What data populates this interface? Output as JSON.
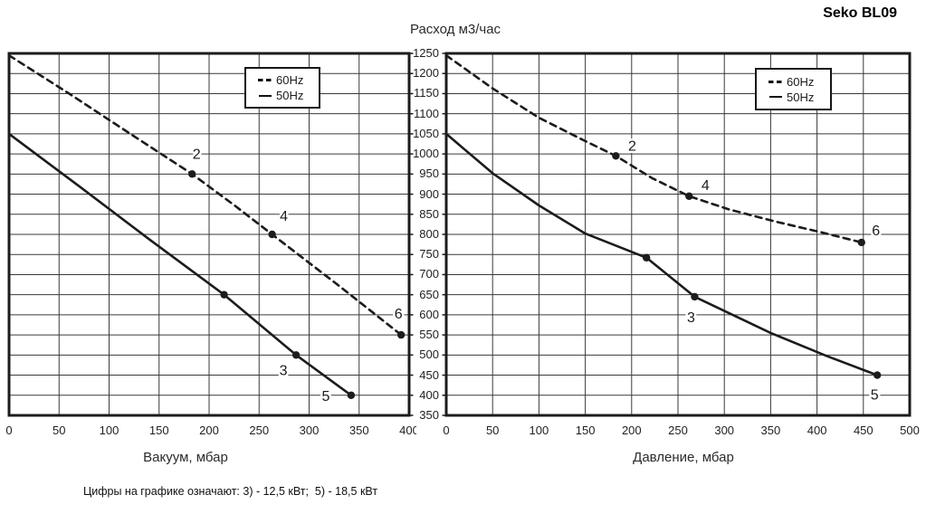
{
  "title": "Seko BL09",
  "flow_axis_title": "Расход м3/час",
  "footnote": "Цифры на графике означают: 3) - 12,5 кВт;  5) - 18,5 кВт",
  "legend": {
    "dashed_label": "60Hz",
    "solid_label": "50Hz"
  },
  "colors": {
    "line": "#1c1c1c",
    "grid": "#3a3a3a",
    "text": "#1f1f1f",
    "background": "#ffffff"
  },
  "y_axis": {
    "title": "Расход м3/час",
    "min": 350,
    "max": 1250,
    "step": 50
  },
  "chart_data": [
    {
      "type": "line",
      "title": "",
      "xlabel": "Вакуум, мбар",
      "ylabel": "Расход м3/час",
      "xlim": [
        0,
        400
      ],
      "ylim": [
        350,
        1250
      ],
      "x_ticks": [
        0,
        50,
        100,
        150,
        200,
        250,
        300,
        350,
        400
      ],
      "grid": true,
      "legend_position": "top-right-inside",
      "series": [
        {
          "name": "60Hz",
          "style": "dashed",
          "points": [
            [
              0,
              1245
            ],
            [
              60,
              1150
            ],
            [
              120,
              1052
            ],
            [
              183,
              950
            ],
            [
              225,
              873
            ],
            [
              263,
              800
            ],
            [
              330,
              672
            ],
            [
              392,
              550
            ]
          ],
          "markers": [
            {
              "x": 183,
              "y": 950,
              "label": "2",
              "dx": 5,
              "dy": -17
            },
            {
              "x": 263,
              "y": 800,
              "label": "4",
              "dx": 13,
              "dy": -15
            },
            {
              "x": 392,
              "y": 550,
              "label": "6",
              "dx": -3,
              "dy": -18
            }
          ]
        },
        {
          "name": "50Hz",
          "style": "solid",
          "points": [
            [
              0,
              1050
            ],
            [
              70,
              920
            ],
            [
              140,
              788
            ],
            [
              215,
              650
            ],
            [
              287,
              500
            ],
            [
              342,
              400
            ]
          ],
          "markers": [
            {
              "x": 215,
              "y": 650,
              "label": ""
            },
            {
              "x": 287,
              "y": 500,
              "label": "3",
              "dx": -14,
              "dy": 22
            },
            {
              "x": 342,
              "y": 400,
              "label": "5",
              "dx": -28,
              "dy": 6
            }
          ]
        }
      ]
    },
    {
      "type": "line",
      "title": "",
      "xlabel": "Давление, мбар",
      "ylabel": "Расход м3/час",
      "xlim": [
        0,
        500
      ],
      "ylim": [
        350,
        1250
      ],
      "x_ticks": [
        0,
        50,
        100,
        150,
        200,
        250,
        300,
        350,
        400,
        450,
        500
      ],
      "grid": true,
      "legend_position": "top-right-inside",
      "series": [
        {
          "name": "60Hz",
          "style": "dashed",
          "points": [
            [
              0,
              1245
            ],
            [
              50,
              1163
            ],
            [
              100,
              1090
            ],
            [
              150,
              1032
            ],
            [
              183,
              995
            ],
            [
              222,
              940
            ],
            [
              262,
              895
            ],
            [
              305,
              862
            ],
            [
              355,
              832
            ],
            [
              405,
              805
            ],
            [
              448,
              780
            ]
          ],
          "markers": [
            {
              "x": 183,
              "y": 995,
              "label": "2",
              "dx": 18,
              "dy": -6
            },
            {
              "x": 262,
              "y": 895,
              "label": "4",
              "dx": 18,
              "dy": -7
            },
            {
              "x": 448,
              "y": 780,
              "label": "6",
              "dx": 16,
              "dy": -8
            }
          ]
        },
        {
          "name": "50Hz",
          "style": "solid",
          "points": [
            [
              0,
              1050
            ],
            [
              50,
              952
            ],
            [
              100,
              872
            ],
            [
              150,
              802
            ],
            [
              216,
              742
            ],
            [
              268,
              645
            ],
            [
              350,
              555
            ],
            [
              410,
              498
            ],
            [
              465,
              450
            ]
          ],
          "markers": [
            {
              "x": 216,
              "y": 742,
              "label": ""
            },
            {
              "x": 268,
              "y": 645,
              "label": "3",
              "dx": -4,
              "dy": 28
            },
            {
              "x": 465,
              "y": 450,
              "label": "5",
              "dx": -3,
              "dy": 27
            }
          ]
        }
      ]
    }
  ]
}
